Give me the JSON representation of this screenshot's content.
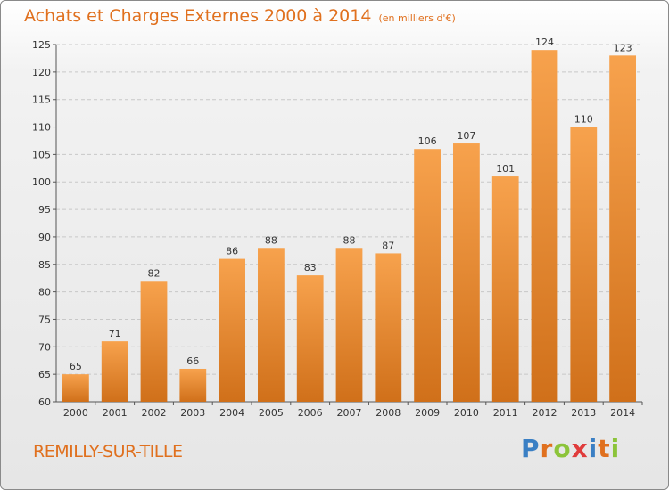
{
  "chart_data": {
    "type": "bar",
    "title": "Achats et Charges Externes 2000 à 2014",
    "subtitle": "(en milliers d'€)",
    "categories": [
      "2000",
      "2001",
      "2002",
      "2003",
      "2004",
      "2005",
      "2006",
      "2007",
      "2008",
      "2009",
      "2010",
      "2011",
      "2012",
      "2013",
      "2014"
    ],
    "values": [
      65,
      71,
      82,
      66,
      86,
      88,
      83,
      88,
      87,
      106,
      107,
      101,
      124,
      110,
      123
    ],
    "ylim": [
      60,
      125
    ],
    "yticks": [
      60,
      65,
      70,
      75,
      80,
      85,
      90,
      95,
      100,
      105,
      110,
      115,
      120,
      125
    ],
    "grid": "horizontal dashed",
    "bar_color_top": "#f7a24d",
    "bar_color_bottom": "#d0701a"
  },
  "footer": {
    "commune": "REMILLY-SUR-TILLE",
    "brand_letters": [
      {
        "ch": "P",
        "color": "#3a7fc4"
      },
      {
        "ch": "r",
        "color": "#e0701e"
      },
      {
        "ch": "o",
        "color": "#8cc43a"
      },
      {
        "ch": "x",
        "color": "#e03c3c"
      },
      {
        "ch": "i",
        "color": "#3a7fc4"
      },
      {
        "ch": "t",
        "color": "#e0701e"
      },
      {
        "ch": "i",
        "color": "#8cc43a"
      }
    ]
  }
}
